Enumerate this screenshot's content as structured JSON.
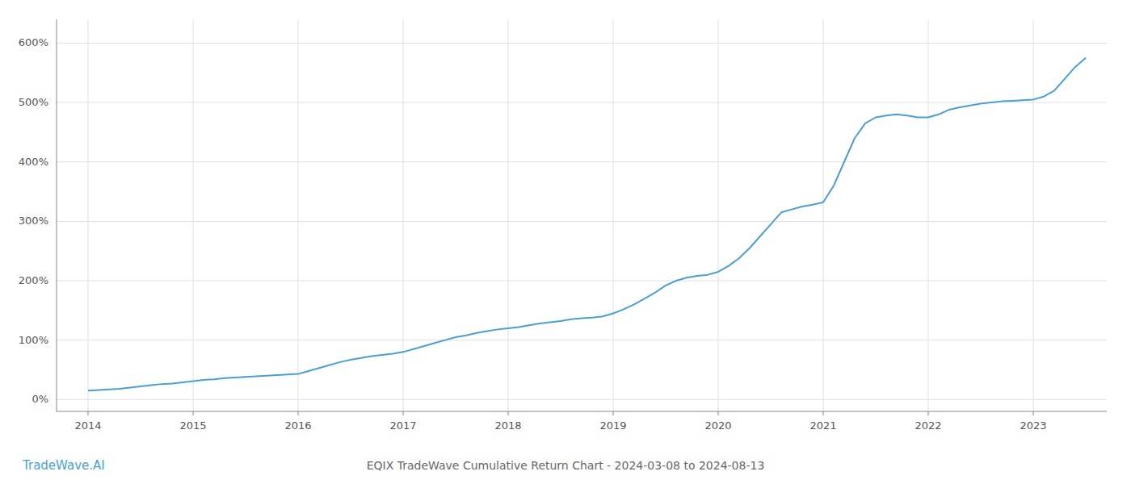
{
  "chart_data": {
    "type": "line",
    "title": "EQIX TradeWave Cumulative Return Chart - 2024-03-08 to 2024-08-13",
    "annotations": [
      {
        "text": "TradeWave.AI",
        "color": "#4a9fd4"
      }
    ],
    "color": "#4a9fd4",
    "grid": true,
    "xlim": [
      2013.7,
      2023.7
    ],
    "xticks": [
      2014,
      2015,
      2016,
      2017,
      2018,
      2019,
      2020,
      2021,
      2022,
      2023
    ],
    "ylim": [
      -20,
      640
    ],
    "yticks": [
      {
        "value": 0,
        "label": "0%"
      },
      {
        "value": 100,
        "label": "100%"
      },
      {
        "value": 200,
        "label": "200%"
      },
      {
        "value": 300,
        "label": "300%"
      },
      {
        "value": 400,
        "label": "400%"
      },
      {
        "value": 500,
        "label": "500%"
      },
      {
        "value": 600,
        "label": "600%"
      }
    ],
    "x": [
      2014.0,
      2014.1,
      2014.2,
      2014.3,
      2014.4,
      2014.5,
      2014.6,
      2014.7,
      2014.8,
      2014.9,
      2015.0,
      2015.1,
      2015.2,
      2015.3,
      2015.4,
      2015.5,
      2015.6,
      2015.7,
      2015.8,
      2015.9,
      2016.0,
      2016.1,
      2016.2,
      2016.3,
      2016.4,
      2016.5,
      2016.6,
      2016.7,
      2016.8,
      2016.9,
      2017.0,
      2017.1,
      2017.2,
      2017.3,
      2017.4,
      2017.5,
      2017.6,
      2017.7,
      2017.8,
      2017.9,
      2018.0,
      2018.1,
      2018.2,
      2018.3,
      2018.4,
      2018.5,
      2018.6,
      2018.7,
      2018.8,
      2018.9,
      2019.0,
      2019.1,
      2019.2,
      2019.3,
      2019.4,
      2019.5,
      2019.6,
      2019.7,
      2019.8,
      2019.9,
      2020.0,
      2020.1,
      2020.2,
      2020.3,
      2020.4,
      2020.5,
      2020.6,
      2020.7,
      2020.8,
      2020.9,
      2021.0,
      2021.1,
      2021.2,
      2021.3,
      2021.4,
      2021.5,
      2021.6,
      2021.7,
      2021.8,
      2021.9,
      2022.0,
      2022.1,
      2022.2,
      2022.3,
      2022.4,
      2022.5,
      2022.6,
      2022.7,
      2022.8,
      2022.9,
      2023.0,
      2023.1,
      2023.2,
      2023.3,
      2023.4,
      2023.5
    ],
    "values": [
      15,
      16,
      17,
      18,
      20,
      22,
      24,
      26,
      27,
      29,
      31,
      33,
      34,
      36,
      37,
      38,
      39,
      40,
      41,
      42,
      43,
      48,
      53,
      58,
      63,
      67,
      70,
      73,
      75,
      77,
      80,
      85,
      90,
      95,
      100,
      105,
      108,
      112,
      115,
      118,
      120,
      122,
      125,
      128,
      130,
      132,
      135,
      137,
      138,
      140,
      145,
      152,
      160,
      170,
      180,
      192,
      200,
      205,
      208,
      210,
      215,
      225,
      238,
      255,
      275,
      295,
      315,
      320,
      325,
      328,
      332,
      360,
      400,
      440,
      465,
      475,
      478,
      480,
      478,
      475,
      475,
      480,
      488,
      492,
      495,
      498,
      500,
      502,
      503,
      504,
      505,
      510,
      520,
      540,
      560,
      575
    ]
  }
}
